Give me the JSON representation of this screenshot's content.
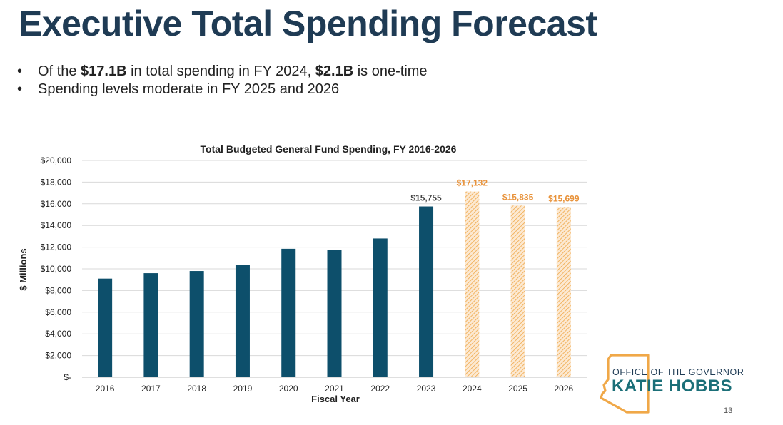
{
  "slide": {
    "title": "Executive Total Spending Forecast",
    "bullets": [
      {
        "pre": "Of the ",
        "b1": "$17.1B",
        "mid": " in total spending in FY 2024, ",
        "b2": "$2.1B",
        "post": " is one-time"
      },
      {
        "pre": "Spending levels moderate in FY 2025 and 2026",
        "b1": "",
        "mid": "",
        "b2": "",
        "post": ""
      }
    ],
    "page_number": "13"
  },
  "logo": {
    "line1": "OFFICE OF THE GOVERNOR",
    "line2": "KATIE HOBBS",
    "outline_color": "#f0a848"
  },
  "chart_data": {
    "type": "bar",
    "title": "Total Budgeted General Fund Spending, FY 2016-2026",
    "xlabel": "Fiscal Year",
    "ylabel": "$ Millions",
    "categories": [
      "2016",
      "2017",
      "2018",
      "2019",
      "2020",
      "2021",
      "2022",
      "2023",
      "2024",
      "2025",
      "2026"
    ],
    "values": [
      9100,
      9600,
      9800,
      10350,
      11850,
      11750,
      12800,
      15755,
      17132,
      15835,
      15699
    ],
    "forecast": [
      false,
      false,
      false,
      false,
      false,
      false,
      false,
      false,
      true,
      true,
      true
    ],
    "data_labels": [
      "",
      "",
      "",
      "",
      "",
      "",
      "",
      "$15,755",
      "$17,132",
      "$15,835",
      "$15,699"
    ],
    "ylim": [
      0,
      20000
    ],
    "yticks": [
      0,
      2000,
      4000,
      6000,
      8000,
      10000,
      12000,
      14000,
      16000,
      18000,
      20000
    ],
    "ytick_labels": [
      "$-",
      "$2,000",
      "$4,000",
      "$6,000",
      "$8,000",
      "$10,000",
      "$12,000",
      "$14,000",
      "$16,000",
      "$18,000",
      "$20,000"
    ],
    "grid": true,
    "colors": {
      "actual": "#0d4f6b",
      "forecast": "#f0a848",
      "forecast_label": "#e8923a",
      "actual_label": "#444444"
    }
  }
}
